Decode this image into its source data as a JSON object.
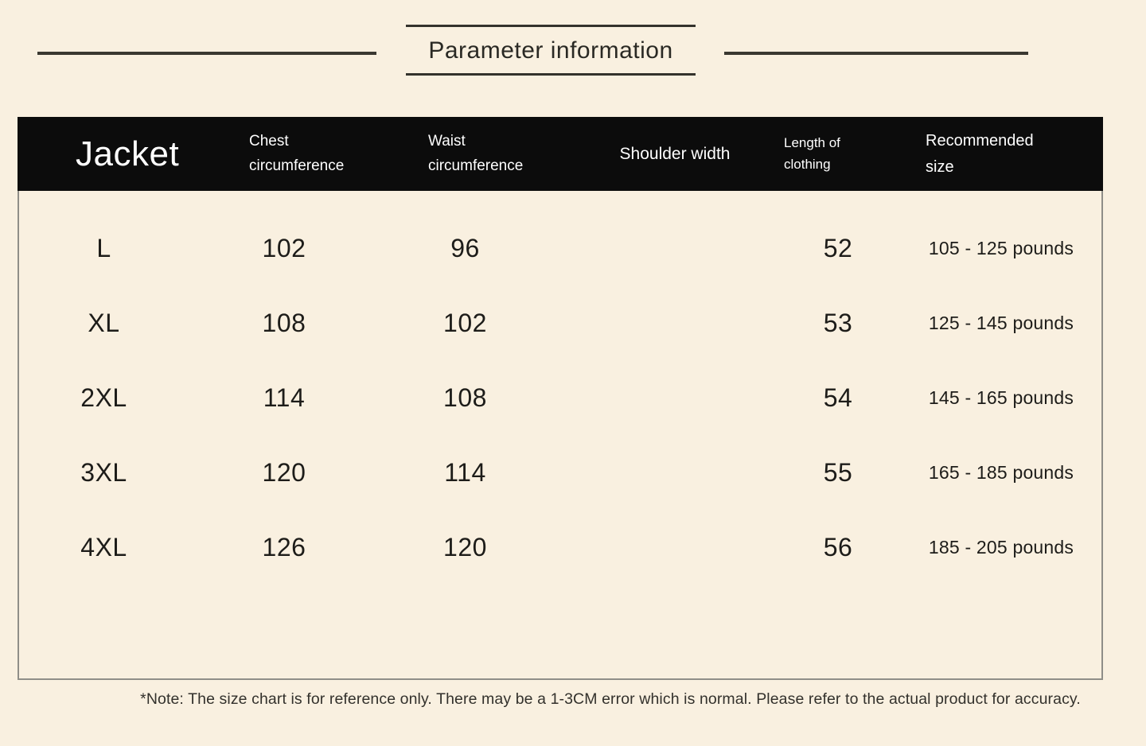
{
  "title": "Parameter information",
  "table": {
    "headers": {
      "jacket": "Jacket",
      "chest_line1": "Chest",
      "chest_line2": "circumference",
      "waist_line1": "Waist",
      "waist_line2": "circumference",
      "shoulder": "Shoulder width",
      "length_line1": "Length of",
      "length_line2": "clothing",
      "recommended_line1": "Recommended",
      "recommended_line2": "size"
    },
    "rows": [
      {
        "size": "L",
        "chest": "102",
        "waist": "96",
        "shoulder": "",
        "length": "52",
        "recommended": "105 - 125 pounds"
      },
      {
        "size": "XL",
        "chest": "108",
        "waist": "102",
        "shoulder": "",
        "length": "53",
        "recommended": "125 - 145 pounds"
      },
      {
        "size": "2XL",
        "chest": "114",
        "waist": "108",
        "shoulder": "",
        "length": "54",
        "recommended": "145 - 165 pounds"
      },
      {
        "size": "3XL",
        "chest": "120",
        "waist": "114",
        "shoulder": "",
        "length": "55",
        "recommended": "165 - 185 pounds"
      },
      {
        "size": "4XL",
        "chest": "126",
        "waist": "120",
        "shoulder": "",
        "length": "56",
        "recommended": "185 - 205 pounds"
      }
    ]
  },
  "note": "*Note: The size chart is for reference only. There may be a 1-3CM error which is normal. Please refer to the actual product for accuracy.",
  "colors": {
    "background": "#f9f0e0",
    "header_background": "#0c0c0c",
    "header_text": "#ffffff",
    "body_text": "#1d1c19",
    "divider_line": "#3a3831",
    "table_border": "#8f8e88"
  }
}
